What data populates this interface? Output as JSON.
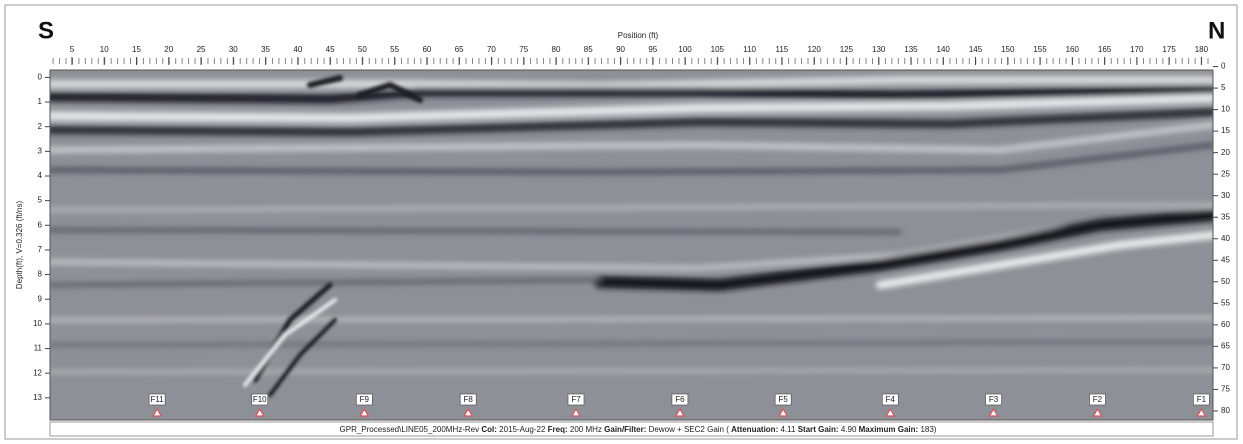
{
  "chart_data": {
    "type": "radargram",
    "left_label": "S",
    "right_label": "N",
    "xlabel": "Position (ft)",
    "ylabel": "Depth(ft), V=0.326 (ft/ns)",
    "xlim": [
      1.6,
      181.8
    ],
    "xticks": [
      5,
      10,
      15,
      20,
      25,
      30,
      35,
      40,
      45,
      50,
      55,
      60,
      65,
      70,
      75,
      80,
      85,
      90,
      95,
      100,
      105,
      110,
      115,
      120,
      125,
      130,
      135,
      140,
      145,
      150,
      155,
      160,
      165,
      170,
      175,
      180
    ],
    "ylim": [
      -0.3,
      13.9
    ],
    "yticks": [
      0,
      1,
      2,
      3,
      4,
      5,
      6,
      7,
      8,
      9,
      10,
      11,
      12,
      13
    ],
    "y2lim": [
      0.8,
      82.1
    ],
    "y2ticks": [
      0,
      5,
      10,
      15,
      20,
      25,
      30,
      35,
      40,
      45,
      50,
      55,
      60,
      65,
      70,
      75,
      80
    ],
    "markers": [
      {
        "label": "F11",
        "x": 18.2
      },
      {
        "label": "F10",
        "x": 34.1
      },
      {
        "label": "F9",
        "x": 50.3
      },
      {
        "label": "F8",
        "x": 66.4
      },
      {
        "label": "F7",
        "x": 83.1
      },
      {
        "label": "F6",
        "x": 99.2
      },
      {
        "label": "F5",
        "x": 115.2
      },
      {
        "label": "F4",
        "x": 131.8
      },
      {
        "label": "F3",
        "x": 147.8
      },
      {
        "label": "F2",
        "x": 163.9
      },
      {
        "label": "F1",
        "x": 180
      }
    ],
    "marker_color": "#e0505a",
    "file": "GPR_Processed\\LINE05_200MHz-Rev",
    "info": [
      {
        "label": "Col:",
        "value": "2015-Aug-22"
      },
      {
        "label": "Freq:",
        "value": "200 MHz"
      },
      {
        "label": "Gain/Filter:",
        "value": "Dewow + SEC2 Gain ("
      },
      {
        "label": "Attenuation:",
        "value": "4.11"
      },
      {
        "label": "Start Gain:",
        "value": "4.90"
      },
      {
        "label": "Maximum Gain:",
        "value": "183)"
      }
    ]
  }
}
